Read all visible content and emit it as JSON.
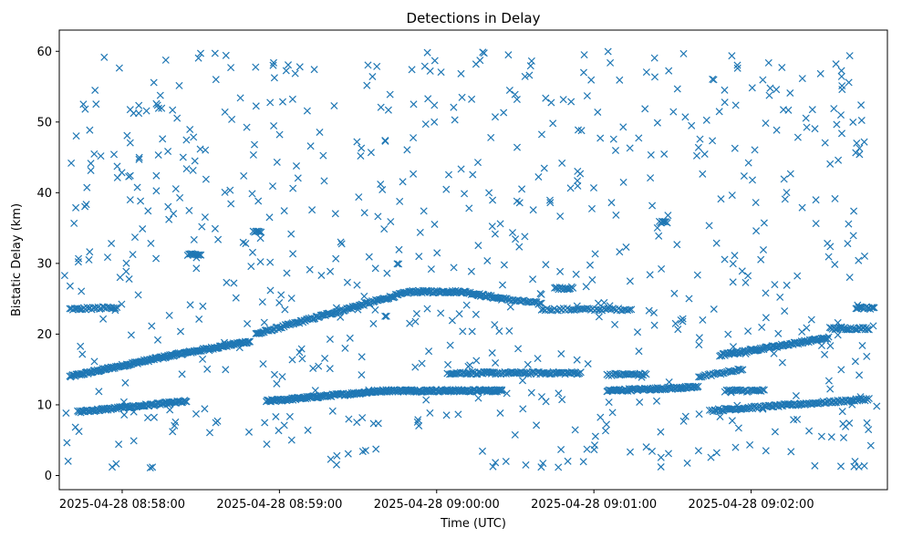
{
  "chart_data": {
    "type": "scatter",
    "title": "Detections in Delay",
    "xlabel": "Time (UTC)",
    "ylabel": "Bistatic Delay (km)",
    "marker": "x",
    "color": "#1f77b4",
    "grid": false,
    "legend": "none",
    "xlim": [
      "2025-04-28 08:57:36",
      "2025-04-28 09:02:52"
    ],
    "ylim": [
      -2,
      63
    ],
    "xticks": [
      {
        "t": "2025-04-28 08:58:00",
        "label": "2025-04-28 08:58:00"
      },
      {
        "t": "2025-04-28 08:59:00",
        "label": "2025-04-28 08:59:00"
      },
      {
        "t": "2025-04-28 09:00:00",
        "label": "2025-04-28 09:00:00"
      },
      {
        "t": "2025-04-28 09:01:00",
        "label": "2025-04-28 09:01:00"
      },
      {
        "t": "2025-04-28 09:02:00",
        "label": "2025-04-28 09:02:00"
      }
    ],
    "yticks": [
      0,
      10,
      20,
      30,
      40,
      50,
      60
    ],
    "tracks": [
      {
        "points": [
          [
            "2025-04-28 08:57:40",
            14.0
          ],
          [
            "2025-04-28 08:58:19",
            17.0
          ],
          [
            "2025-04-28 08:58:49",
            19.0
          ]
        ],
        "step_s": 0.35
      },
      {
        "points": [
          [
            "2025-04-28 08:58:51",
            20.0
          ],
          [
            "2025-04-28 08:59:30",
            24.0
          ],
          [
            "2025-04-28 08:59:50",
            26.0
          ]
        ],
        "step_s": 0.45
      },
      {
        "points": [
          [
            "2025-04-28 08:59:50",
            26.0
          ],
          [
            "2025-04-28 09:00:10",
            26.0
          ],
          [
            "2025-04-28 09:00:25",
            25.0
          ]
        ],
        "step_s": 0.4
      },
      {
        "points": [
          [
            "2025-04-28 09:00:25",
            25.0
          ],
          [
            "2025-04-28 09:00:40",
            24.3
          ]
        ],
        "step_s": 0.6
      },
      {
        "points": [
          [
            "2025-04-28 09:00:40",
            23.5
          ],
          [
            "2025-04-28 09:01:15",
            23.5
          ]
        ],
        "step_s": 0.7
      },
      {
        "points": [
          [
            "2025-04-28 09:00:45",
            26.5
          ],
          [
            "2025-04-28 09:00:52",
            26.5
          ]
        ],
        "step_s": 0.5
      },
      {
        "points": [
          [
            "2025-04-28 08:57:43",
            9.0
          ],
          [
            "2025-04-28 08:58:25",
            10.5
          ]
        ],
        "step_s": 0.4
      },
      {
        "points": [
          [
            "2025-04-28 08:58:55",
            10.5
          ],
          [
            "2025-04-28 08:59:40",
            12.0
          ],
          [
            "2025-04-28 09:00:25",
            12.0
          ]
        ],
        "step_s": 0.35
      },
      {
        "points": [
          [
            "2025-04-28 09:00:05",
            14.5
          ],
          [
            "2025-04-28 09:00:55",
            14.5
          ]
        ],
        "step_s": 0.5
      },
      {
        "points": [
          [
            "2025-04-28 09:01:05",
            14.3
          ],
          [
            "2025-04-28 09:01:20",
            14.3
          ]
        ],
        "step_s": 0.6
      },
      {
        "points": [
          [
            "2025-04-28 09:01:05",
            12.0
          ],
          [
            "2025-04-28 09:01:40",
            12.5
          ]
        ],
        "step_s": 0.4
      },
      {
        "points": [
          [
            "2025-04-28 09:01:40",
            14.0
          ],
          [
            "2025-04-28 09:01:57",
            15.0
          ]
        ],
        "step_s": 0.6
      },
      {
        "points": [
          [
            "2025-04-28 09:01:48",
            17.0
          ],
          [
            "2025-04-28 09:02:30",
            19.5
          ]
        ],
        "step_s": 0.4
      },
      {
        "points": [
          [
            "2025-04-28 09:02:30",
            20.8
          ],
          [
            "2025-04-28 09:02:45",
            20.8
          ]
        ],
        "step_s": 0.5
      },
      {
        "points": [
          [
            "2025-04-28 09:01:45",
            9.2
          ],
          [
            "2025-04-28 09:02:45",
            10.8
          ]
        ],
        "step_s": 0.5
      },
      {
        "points": [
          [
            "2025-04-28 09:01:50",
            12.0
          ],
          [
            "2025-04-28 09:02:05",
            12.0
          ]
        ],
        "step_s": 0.6
      },
      {
        "points": [
          [
            "2025-04-28 08:57:40",
            23.5
          ],
          [
            "2025-04-28 08:57:58",
            23.8
          ]
        ],
        "step_s": 0.6
      },
      {
        "points": [
          [
            "2025-04-28 09:02:40",
            23.7
          ],
          [
            "2025-04-28 09:02:47",
            23.7
          ]
        ],
        "step_s": 0.5
      },
      {
        "points": [
          [
            "2025-04-28 08:58:25",
            31.2
          ],
          [
            "2025-04-28 08:58:30",
            31.2
          ]
        ],
        "step_s": 0.5
      },
      {
        "points": [
          [
            "2025-04-28 08:58:50",
            34.5
          ],
          [
            "2025-04-28 08:58:53",
            34.5
          ]
        ],
        "step_s": 0.5
      },
      {
        "points": [
          [
            "2025-04-28 09:01:25",
            35.8
          ],
          [
            "2025-04-28 09:01:28",
            35.8
          ]
        ],
        "step_s": 0.5
      }
    ],
    "noise": {
      "seed": 12345,
      "count": 720,
      "x_range": [
        "2025-04-28 08:57:38",
        "2025-04-28 09:02:48"
      ],
      "y_range": [
        1,
        60
      ]
    }
  }
}
